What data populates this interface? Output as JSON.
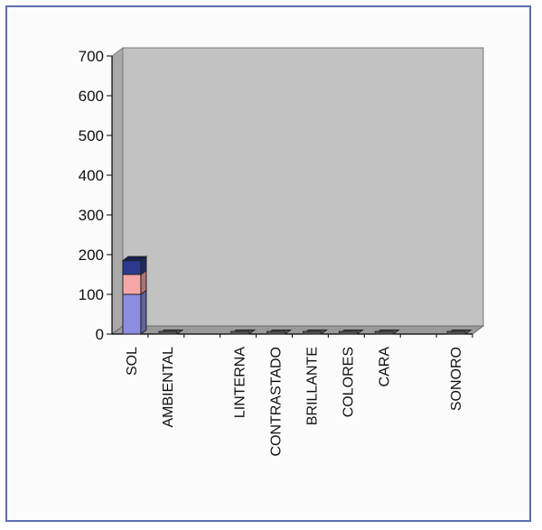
{
  "chart_data": {
    "type": "bar",
    "stacked": true,
    "three_d": true,
    "categories": [
      "SOL",
      "AMBIENTAL",
      "",
      "LINTERNA",
      "CONTRASTADO",
      "BRILLANTE",
      "COLORES",
      "CARA",
      "",
      "SONORO"
    ],
    "series": [
      {
        "values": [
          100,
          0,
          0,
          0,
          0,
          0,
          0,
          0,
          0,
          0
        ],
        "color": "#8c8ce0"
      },
      {
        "values": [
          50,
          0,
          0,
          0,
          0,
          0,
          0,
          0,
          0,
          0
        ],
        "color": "#f5a6a6"
      },
      {
        "values": [
          35,
          0,
          0,
          0,
          0,
          0,
          0,
          0,
          0,
          0
        ],
        "color": "#2b3a8f"
      }
    ],
    "ylim": [
      0,
      700
    ],
    "yticks": [
      "0",
      "100",
      "200",
      "300",
      "400",
      "500",
      "600",
      "700"
    ],
    "grid": false,
    "legend": "none",
    "colors": {
      "wall": "#c2c2c2",
      "floor": "#9a9a9a",
      "side_wall": "#a9a9a9",
      "frame_border": "#5a6fb0"
    }
  }
}
